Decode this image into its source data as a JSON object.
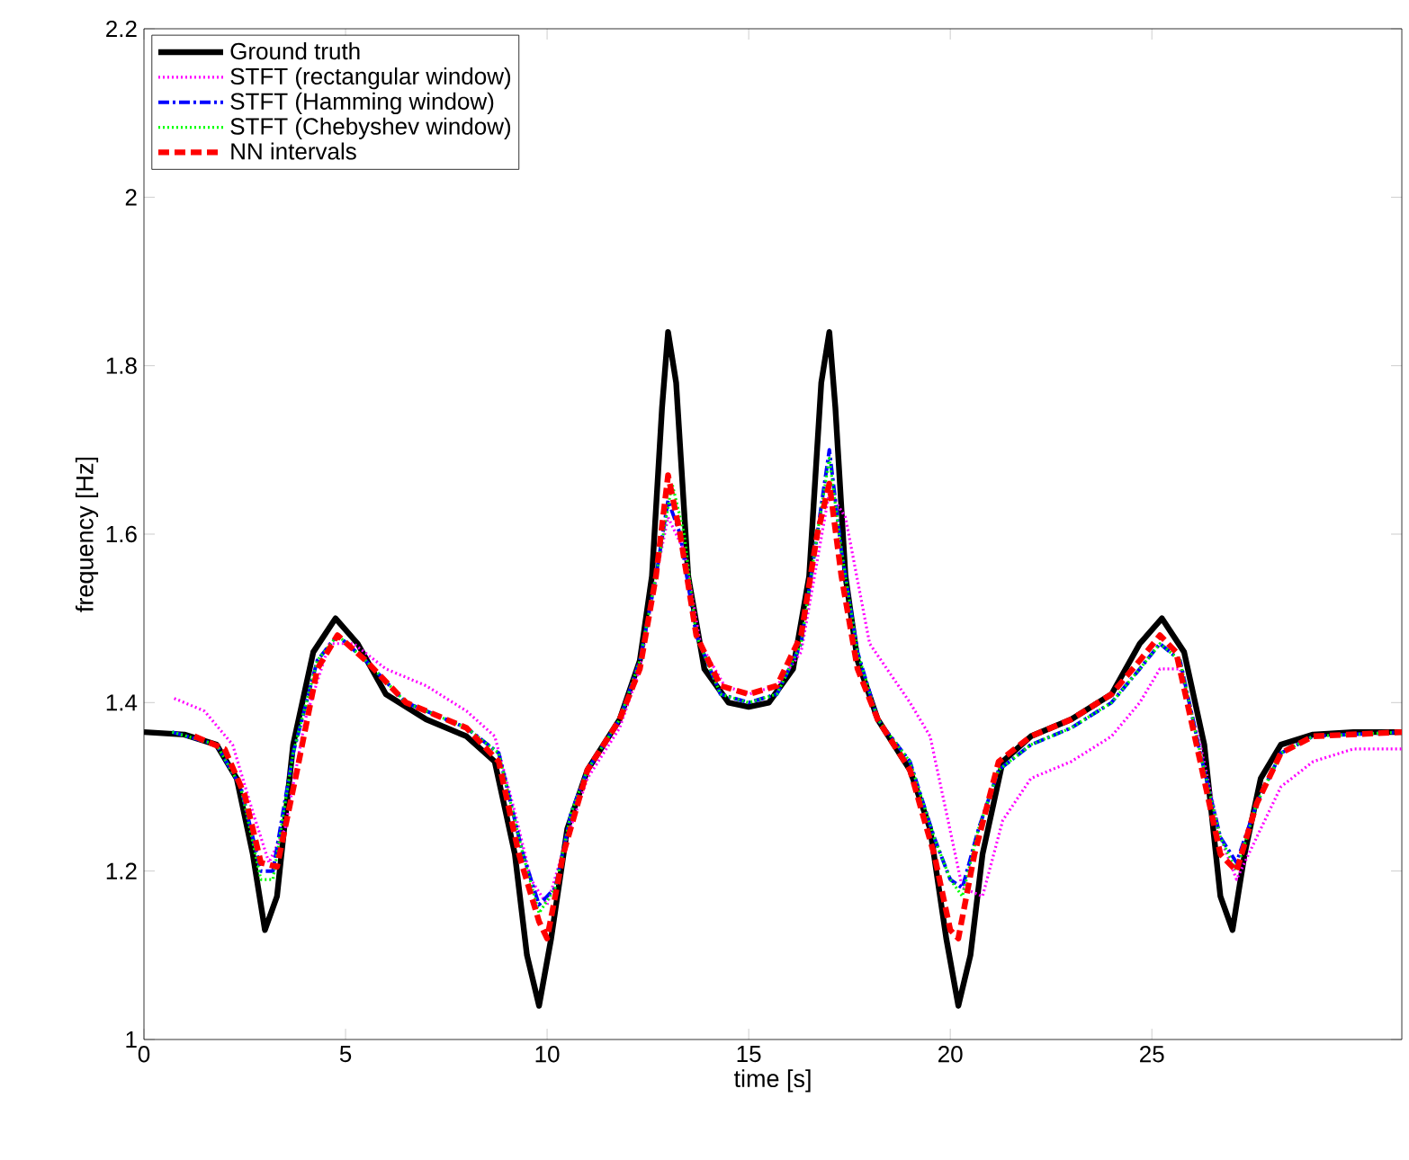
{
  "chart_data": {
    "type": "line",
    "xlabel": "time [s]",
    "ylabel": "frequency [Hz]",
    "xlim": [
      0,
      31.2
    ],
    "ylim": [
      1,
      2.2
    ],
    "xticks": [
      0,
      5,
      10,
      15,
      20,
      25
    ],
    "yticks": [
      1,
      1.2,
      1.4,
      1.6,
      1.8,
      2,
      2.2
    ],
    "grid": false,
    "legend": "top left",
    "marker": "none",
    "series": [
      {
        "name": "Ground truth",
        "color": "#000000",
        "line_style": "solid",
        "x": [
          0,
          1,
          1.8,
          2.3,
          2.7,
          3,
          3.3,
          3.7,
          4.2,
          4.75,
          5.3,
          6,
          7,
          8,
          8.7,
          9.2,
          9.5,
          9.8,
          10.1,
          10.5,
          11,
          11.8,
          12.3,
          12.6,
          12.85,
          13,
          13.2,
          13.5,
          13.9,
          14.5,
          15,
          15.5,
          16.1,
          16.5,
          16.8,
          17,
          17.15,
          17.4,
          17.7,
          18.2,
          19,
          19.5,
          19.9,
          20.2,
          20.5,
          20.8,
          21.3,
          22,
          23,
          24,
          24.7,
          25.25,
          25.8,
          26.3,
          26.7,
          27,
          27.3,
          27.7,
          28.2,
          29,
          30,
          31.2
        ],
        "values": [
          1.365,
          1.362,
          1.35,
          1.31,
          1.22,
          1.13,
          1.17,
          1.35,
          1.46,
          1.5,
          1.47,
          1.41,
          1.38,
          1.36,
          1.33,
          1.22,
          1.1,
          1.04,
          1.12,
          1.25,
          1.32,
          1.38,
          1.45,
          1.55,
          1.75,
          1.84,
          1.78,
          1.55,
          1.44,
          1.4,
          1.395,
          1.4,
          1.44,
          1.55,
          1.78,
          1.84,
          1.75,
          1.55,
          1.45,
          1.38,
          1.32,
          1.25,
          1.12,
          1.04,
          1.1,
          1.22,
          1.33,
          1.36,
          1.38,
          1.41,
          1.47,
          1.5,
          1.46,
          1.35,
          1.17,
          1.13,
          1.22,
          1.31,
          1.35,
          1.362,
          1.365,
          1.365
        ]
      },
      {
        "name": "STFT (rectangular window)",
        "color": "#ff00ff",
        "line_style": "dotted",
        "x": [
          0.75,
          1.5,
          2.2,
          2.7,
          3.1,
          3.5,
          4,
          4.6,
          5.2,
          6,
          7,
          8,
          8.7,
          9.2,
          9.6,
          10,
          10.5,
          11,
          11.8,
          12.3,
          12.7,
          13,
          13.4,
          13.8,
          14.4,
          15,
          15.7,
          16.3,
          17,
          17.4,
          18,
          19,
          19.5,
          19.9,
          20.3,
          20.8,
          21.3,
          22,
          23,
          24,
          24.7,
          25.2,
          25.7,
          26.2,
          26.7,
          27.1,
          27.6,
          28.2,
          29,
          30,
          31.2
        ],
        "values": [
          1.405,
          1.39,
          1.35,
          1.27,
          1.21,
          1.25,
          1.38,
          1.47,
          1.47,
          1.44,
          1.42,
          1.39,
          1.36,
          1.27,
          1.19,
          1.16,
          1.24,
          1.31,
          1.37,
          1.44,
          1.55,
          1.62,
          1.58,
          1.47,
          1.42,
          1.41,
          1.42,
          1.46,
          1.65,
          1.62,
          1.47,
          1.4,
          1.36,
          1.27,
          1.18,
          1.17,
          1.26,
          1.31,
          1.33,
          1.36,
          1.4,
          1.44,
          1.44,
          1.35,
          1.24,
          1.19,
          1.24,
          1.3,
          1.33,
          1.345,
          1.345
        ]
      },
      {
        "name": "STFT (Hamming window)",
        "color": "#0000ff",
        "line_style": "dashdot",
        "x": [
          0.7,
          1.8,
          2.4,
          2.9,
          3.2,
          3.7,
          4.3,
          4.8,
          5.5,
          6.5,
          8,
          8.8,
          9.4,
          9.8,
          10.2,
          10.6,
          11,
          11.8,
          12.3,
          12.7,
          13,
          13.3,
          13.7,
          14.3,
          15,
          15.7,
          16.3,
          16.7,
          17,
          17.3,
          17.7,
          18.2,
          19,
          19.6,
          20,
          20.3,
          20.7,
          21.2,
          22,
          23,
          24,
          24.7,
          25.2,
          25.7,
          26.2,
          26.7,
          27.1,
          27.6,
          28.2,
          29,
          31.2
        ],
        "values": [
          1.365,
          1.35,
          1.3,
          1.2,
          1.2,
          1.34,
          1.45,
          1.48,
          1.45,
          1.4,
          1.37,
          1.34,
          1.22,
          1.16,
          1.18,
          1.27,
          1.32,
          1.38,
          1.45,
          1.55,
          1.64,
          1.6,
          1.48,
          1.41,
          1.4,
          1.41,
          1.47,
          1.6,
          1.7,
          1.58,
          1.46,
          1.38,
          1.33,
          1.24,
          1.19,
          1.18,
          1.25,
          1.32,
          1.35,
          1.37,
          1.4,
          1.44,
          1.47,
          1.45,
          1.34,
          1.24,
          1.21,
          1.28,
          1.34,
          1.36,
          1.365
        ]
      },
      {
        "name": "STFT (Chebyshev window)",
        "color": "#00ff00",
        "line_style": "dotted",
        "x": [
          0.7,
          1.8,
          2.4,
          2.9,
          3.2,
          3.7,
          4.3,
          4.8,
          5.5,
          6.5,
          8,
          8.8,
          9.4,
          9.8,
          10.2,
          10.6,
          11,
          11.8,
          12.3,
          12.7,
          13.1,
          13.4,
          13.7,
          14.3,
          15,
          15.7,
          16.3,
          16.7,
          17,
          17.3,
          17.7,
          18.2,
          19,
          19.6,
          20,
          20.3,
          20.7,
          21.2,
          22,
          23,
          24,
          24.7,
          25.2,
          25.7,
          26.2,
          26.7,
          27.1,
          27.6,
          28.2,
          29,
          31.2
        ],
        "values": [
          1.365,
          1.35,
          1.3,
          1.19,
          1.19,
          1.34,
          1.45,
          1.48,
          1.45,
          1.4,
          1.37,
          1.34,
          1.22,
          1.15,
          1.18,
          1.27,
          1.32,
          1.38,
          1.45,
          1.55,
          1.66,
          1.6,
          1.48,
          1.41,
          1.4,
          1.41,
          1.47,
          1.6,
          1.69,
          1.58,
          1.46,
          1.38,
          1.33,
          1.24,
          1.19,
          1.17,
          1.25,
          1.32,
          1.35,
          1.37,
          1.4,
          1.44,
          1.47,
          1.45,
          1.34,
          1.24,
          1.2,
          1.28,
          1.34,
          1.36,
          1.365
        ]
      },
      {
        "name": "NN intervals",
        "color": "#ff0000",
        "line_style": "dashed",
        "x": [
          1.25,
          2,
          2.5,
          2.9,
          3.3,
          3.8,
          4.3,
          4.8,
          5.5,
          6.5,
          8,
          8.8,
          9.3,
          9.8,
          10,
          10.4,
          11,
          11.8,
          12.3,
          12.7,
          13,
          13.3,
          13.7,
          14.3,
          15,
          15.7,
          16.3,
          16.7,
          17,
          17.3,
          17.7,
          18.2,
          19,
          19.6,
          20,
          20.2,
          20.6,
          21.2,
          22,
          23,
          24,
          24.7,
          25.2,
          25.6,
          26.2,
          26.7,
          27.1,
          27.6,
          28.2,
          29,
          31.2
        ],
        "values": [
          1.36,
          1.345,
          1.29,
          1.21,
          1.205,
          1.32,
          1.44,
          1.48,
          1.45,
          1.4,
          1.37,
          1.33,
          1.22,
          1.14,
          1.12,
          1.22,
          1.32,
          1.38,
          1.44,
          1.55,
          1.67,
          1.6,
          1.48,
          1.42,
          1.41,
          1.42,
          1.48,
          1.6,
          1.66,
          1.55,
          1.44,
          1.38,
          1.32,
          1.22,
          1.13,
          1.12,
          1.22,
          1.33,
          1.36,
          1.38,
          1.41,
          1.45,
          1.48,
          1.46,
          1.33,
          1.22,
          1.2,
          1.28,
          1.34,
          1.36,
          1.365
        ]
      }
    ]
  }
}
